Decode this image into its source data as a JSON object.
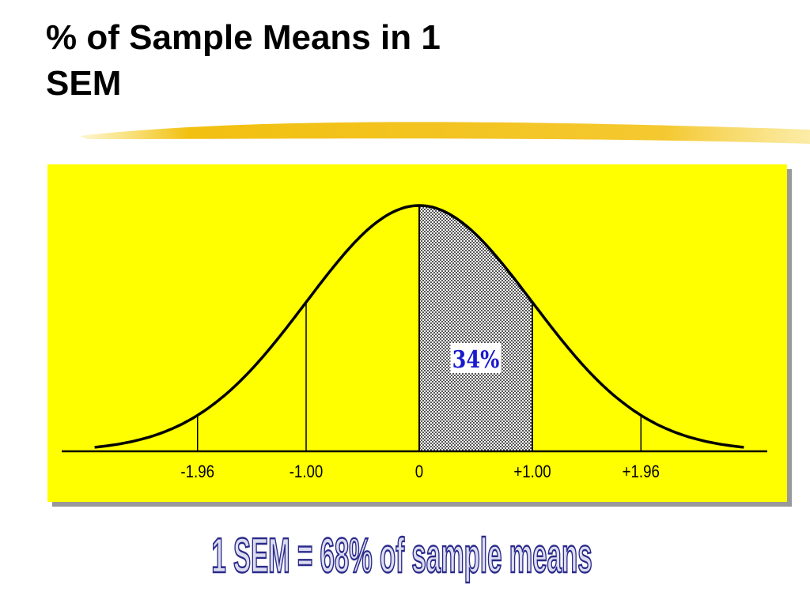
{
  "chart_data": {
    "type": "normal",
    "title": "% of Sample Means in 1 SEM",
    "xlim": [
      -3,
      3
    ],
    "xticks": [
      -1.96,
      {
        "value": -1,
        "label": "-1.00"
      },
      0,
      {
        "value": 1,
        "label": "+1.00"
      },
      {
        "value": 1.96,
        "label": "+1.96"
      }
    ],
    "regions": [
      {
        "x": [
          0,
          1
        ],
        "value": 34,
        "value_label": "34%"
      }
    ],
    "caption": "1 SEM = 68% of sample means"
  }
}
